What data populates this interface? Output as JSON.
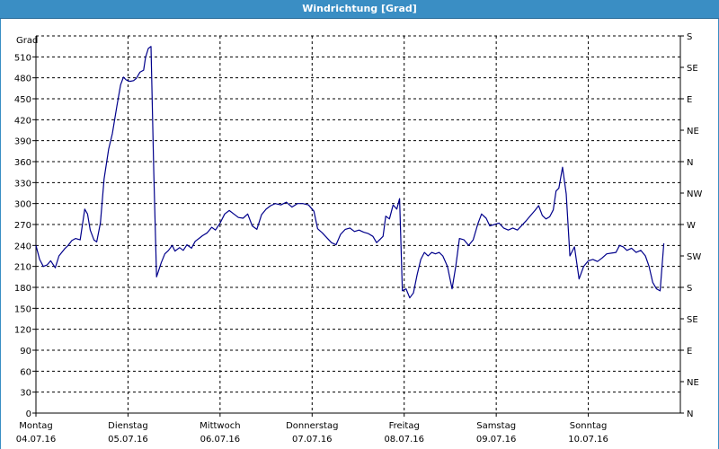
{
  "window": {
    "title": "Windrichtung [Grad]"
  },
  "chart_data": {
    "type": "line",
    "title": "Windrichtung [Grad]",
    "ylabel": "Grad",
    "ylim": [
      0,
      540
    ],
    "y_ticks": [
      0,
      30,
      60,
      90,
      120,
      150,
      180,
      210,
      240,
      270,
      300,
      330,
      360,
      390,
      420,
      450,
      480,
      510
    ],
    "y_tick_labels": [
      "0",
      "30",
      "60",
      "90",
      "120",
      "150",
      "180",
      "210",
      "240",
      "270",
      "300",
      "330",
      "360",
      "390",
      "420",
      "450",
      "480",
      "510"
    ],
    "right_axis_labels": [
      {
        "value": 0,
        "label": "N"
      },
      {
        "value": 45,
        "label": "NE"
      },
      {
        "value": 90,
        "label": "E"
      },
      {
        "value": 135,
        "label": "SE"
      },
      {
        "value": 180,
        "label": "S"
      },
      {
        "value": 225,
        "label": "SW"
      },
      {
        "value": 270,
        "label": "W"
      },
      {
        "value": 315,
        "label": "NW"
      },
      {
        "value": 360,
        "label": "N"
      },
      {
        "value": 405,
        "label": "NE"
      },
      {
        "value": 450,
        "label": "E"
      },
      {
        "value": 495,
        "label": "SE"
      },
      {
        "value": 540,
        "label": "S"
      }
    ],
    "xlim": [
      0,
      7
    ],
    "x_ticks": [
      {
        "x": 0,
        "day": "Montag",
        "date": "04.07.16"
      },
      {
        "x": 1,
        "day": "Dienstag",
        "date": "05.07.16"
      },
      {
        "x": 2,
        "day": "Mittwoch",
        "date": "06.07.16"
      },
      {
        "x": 3,
        "day": "Donnerstag",
        "date": "07.07.16"
      },
      {
        "x": 4,
        "day": "Freitag",
        "date": "08.07.16"
      },
      {
        "x": 5,
        "day": "Samstag",
        "date": "09.07.16"
      },
      {
        "x": 6,
        "day": "Sonntag",
        "date": "10.07.16"
      }
    ],
    "grid": true,
    "line_color": "#00008b",
    "series": [
      {
        "values": [
          [
            0.0,
            240
          ],
          [
            0.04,
            220
          ],
          [
            0.08,
            210
          ],
          [
            0.12,
            212
          ],
          [
            0.16,
            218
          ],
          [
            0.21,
            208
          ],
          [
            0.25,
            225
          ],
          [
            0.31,
            235
          ],
          [
            0.35,
            240
          ],
          [
            0.39,
            247
          ],
          [
            0.43,
            250
          ],
          [
            0.48,
            248
          ],
          [
            0.53,
            292
          ],
          [
            0.56,
            285
          ],
          [
            0.59,
            262
          ],
          [
            0.63,
            248
          ],
          [
            0.66,
            245
          ],
          [
            0.7,
            272
          ],
          [
            0.74,
            335
          ],
          [
            0.79,
            378
          ],
          [
            0.83,
            400
          ],
          [
            0.88,
            440
          ],
          [
            0.92,
            470
          ],
          [
            0.95,
            481
          ],
          [
            0.98,
            477
          ],
          [
            1.02,
            475
          ],
          [
            1.06,
            476
          ],
          [
            1.09,
            479
          ],
          [
            1.13,
            488
          ],
          [
            1.17,
            491
          ],
          [
            1.19,
            509
          ],
          [
            1.22,
            522
          ],
          [
            1.25,
            525
          ],
          [
            1.28,
            345
          ],
          [
            1.31,
            195
          ],
          [
            1.36,
            215
          ],
          [
            1.4,
            228
          ],
          [
            1.44,
            233
          ],
          [
            1.48,
            240
          ],
          [
            1.51,
            232
          ],
          [
            1.56,
            237
          ],
          [
            1.6,
            233
          ],
          [
            1.64,
            241
          ],
          [
            1.69,
            236
          ],
          [
            1.73,
            246
          ],
          [
            1.77,
            250
          ],
          [
            1.81,
            254
          ],
          [
            1.86,
            258
          ],
          [
            1.91,
            266
          ],
          [
            1.95,
            262
          ],
          [
            2.0,
            272
          ],
          [
            2.05,
            285
          ],
          [
            2.1,
            290
          ],
          [
            2.15,
            285
          ],
          [
            2.2,
            280
          ],
          [
            2.25,
            279
          ],
          [
            2.3,
            285
          ],
          [
            2.35,
            268
          ],
          [
            2.4,
            263
          ],
          [
            2.45,
            284
          ],
          [
            2.5,
            292
          ],
          [
            2.55,
            297
          ],
          [
            2.6,
            300
          ],
          [
            2.66,
            298
          ],
          [
            2.72,
            302
          ],
          [
            2.78,
            295
          ],
          [
            2.84,
            300
          ],
          [
            2.9,
            300
          ],
          [
            2.96,
            298
          ],
          [
            3.02,
            289
          ],
          [
            3.06,
            264
          ],
          [
            3.11,
            258
          ],
          [
            3.16,
            251
          ],
          [
            3.21,
            244
          ],
          [
            3.26,
            241
          ],
          [
            3.31,
            256
          ],
          [
            3.36,
            263
          ],
          [
            3.41,
            265
          ],
          [
            3.46,
            260
          ],
          [
            3.51,
            262
          ],
          [
            3.56,
            259
          ],
          [
            3.61,
            257
          ],
          [
            3.66,
            253
          ],
          [
            3.7,
            244
          ],
          [
            3.74,
            249
          ],
          [
            3.77,
            253
          ],
          [
            3.8,
            282
          ],
          [
            3.84,
            278
          ],
          [
            3.88,
            298
          ],
          [
            3.92,
            292
          ],
          [
            3.95,
            307
          ],
          [
            3.98,
            175
          ],
          [
            4.02,
            178
          ],
          [
            4.06,
            165
          ],
          [
            4.1,
            172
          ],
          [
            4.14,
            198
          ],
          [
            4.18,
            220
          ],
          [
            4.22,
            230
          ],
          [
            4.26,
            225
          ],
          [
            4.3,
            230
          ],
          [
            4.34,
            228
          ],
          [
            4.38,
            230
          ],
          [
            4.42,
            225
          ],
          [
            4.47,
            210
          ],
          [
            4.52,
            178
          ],
          [
            4.56,
            210
          ],
          [
            4.6,
            250
          ],
          [
            4.65,
            248
          ],
          [
            4.7,
            240
          ],
          [
            4.75,
            248
          ],
          [
            4.8,
            271
          ],
          [
            4.84,
            285
          ],
          [
            4.89,
            279
          ],
          [
            4.93,
            268
          ],
          [
            4.98,
            270
          ],
          [
            5.03,
            272
          ],
          [
            5.08,
            265
          ],
          [
            5.13,
            262
          ],
          [
            5.18,
            265
          ],
          [
            5.23,
            262
          ],
          [
            5.28,
            269
          ],
          [
            5.33,
            276
          ],
          [
            5.38,
            284
          ],
          [
            5.42,
            290
          ],
          [
            5.46,
            297
          ],
          [
            5.5,
            283
          ],
          [
            5.54,
            278
          ],
          [
            5.58,
            281
          ],
          [
            5.62,
            291
          ],
          [
            5.65,
            318
          ],
          [
            5.68,
            322
          ],
          [
            5.72,
            352
          ],
          [
            5.76,
            314
          ],
          [
            5.8,
            225
          ],
          [
            5.85,
            238
          ],
          [
            5.9,
            192
          ],
          [
            5.95,
            210
          ],
          [
            6.0,
            218
          ],
          [
            6.05,
            220
          ],
          [
            6.1,
            217
          ],
          [
            6.15,
            222
          ],
          [
            6.2,
            228
          ],
          [
            6.25,
            229
          ],
          [
            6.3,
            230
          ],
          [
            6.34,
            240
          ],
          [
            6.38,
            238
          ],
          [
            6.42,
            233
          ],
          [
            6.47,
            236
          ],
          [
            6.52,
            230
          ],
          [
            6.57,
            233
          ],
          [
            6.62,
            225
          ],
          [
            6.66,
            210
          ],
          [
            6.7,
            187
          ],
          [
            6.74,
            178
          ],
          [
            6.78,
            175
          ],
          [
            6.82,
            243
          ]
        ]
      }
    ]
  }
}
